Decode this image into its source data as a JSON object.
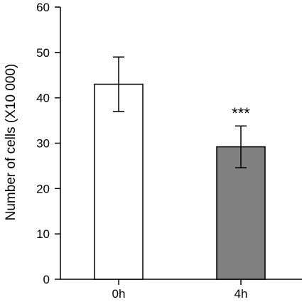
{
  "chart_data": {
    "type": "bar",
    "categories": [
      "0h",
      "4h"
    ],
    "values": [
      43,
      29.2
    ],
    "errors": [
      6,
      4.6
    ],
    "bar_colors": [
      "#ffffff",
      "#808080"
    ],
    "annotations": [
      "",
      "***"
    ],
    "ylabel": "Number of cells (X10 000)",
    "ylim": [
      0,
      60
    ],
    "yticks": [
      0,
      10,
      20,
      30,
      40,
      50,
      60
    ],
    "grid": false
  }
}
